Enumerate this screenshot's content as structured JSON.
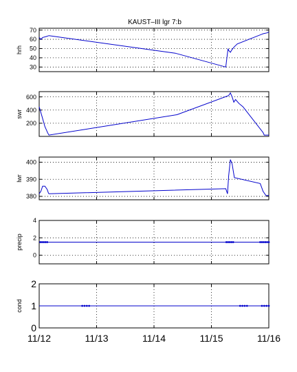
{
  "title": "KAUST–III  lgr 7:b",
  "line_color": "#0000cc",
  "x_tick_labels": [
    "11/12",
    "11/13",
    "11/14",
    "11/15",
    "11/16"
  ],
  "chart_data": [
    {
      "type": "line",
      "ylabel": "hrh",
      "xlim": [
        0,
        4
      ],
      "ylim": [
        25,
        72
      ],
      "y_ticks": [
        30,
        40,
        50,
        60,
        70
      ],
      "grid": true,
      "series": [
        {
          "x": [
            0,
            0.03,
            0.06,
            0.12,
            0.17,
            2.37,
            3.25,
            3.29,
            3.3,
            3.33,
            3.36,
            3.4,
            3.45,
            3.9,
            3.97,
            4.0
          ],
          "y": [
            62,
            60,
            62,
            63,
            64,
            45,
            30,
            50,
            48,
            46,
            49,
            52,
            55,
            66,
            67,
            68
          ]
        }
      ]
    },
    {
      "type": "line",
      "ylabel": "swr",
      "xlim": [
        0,
        4
      ],
      "ylim": [
        0,
        680
      ],
      "y_ticks": [
        200,
        400,
        600
      ],
      "grid": true,
      "series": [
        {
          "x": [
            0,
            0.05,
            0.1,
            0.15,
            0.17,
            2.4,
            3.3,
            3.33,
            3.36,
            3.39,
            3.42,
            3.48,
            3.55,
            3.9,
            3.92,
            3.96,
            4.0
          ],
          "y": [
            450,
            300,
            150,
            50,
            20,
            330,
            620,
            660,
            600,
            520,
            560,
            500,
            450,
            60,
            20,
            20,
            20
          ]
        }
      ]
    },
    {
      "type": "line",
      "ylabel": "lwr",
      "xlim": [
        0,
        4
      ],
      "ylim": [
        378,
        403
      ],
      "y_ticks": [
        380,
        390,
        400
      ],
      "grid": true,
      "series": [
        {
          "x": [
            0,
            0.03,
            0.06,
            0.1,
            0.14,
            0.16,
            0.17,
            3.25,
            3.28,
            3.3,
            3.33,
            3.36,
            3.4,
            3.85,
            3.9,
            3.95,
            4.0
          ],
          "y": [
            381.5,
            383,
            386,
            386,
            384,
            382,
            381.5,
            384.5,
            381.5,
            392,
            401.5,
            399,
            391,
            387.5,
            383,
            380.5,
            380.5
          ]
        }
      ]
    },
    {
      "type": "line",
      "ylabel": "precip",
      "xlim": [
        0,
        4
      ],
      "ylim": [
        -1,
        4
      ],
      "y_ticks": [
        0,
        2,
        4
      ],
      "grid": true,
      "series": [
        {
          "x": [
            0,
            4
          ],
          "y": [
            1.5,
            1.5
          ]
        }
      ],
      "markers": [
        {
          "x": [
            0.02,
            0.05,
            0.08,
            0.11,
            0.14,
            3.26,
            3.29,
            3.32,
            3.35,
            3.38,
            3.85,
            3.88,
            3.91,
            3.94,
            3.97,
            4.0
          ],
          "y": 1.5
        }
      ]
    },
    {
      "type": "line",
      "ylabel": "cond",
      "xlim": [
        0,
        4
      ],
      "ylim": [
        0,
        2
      ],
      "y_ticks": [
        0,
        1,
        2
      ],
      "grid": true,
      "series": [
        {
          "x": [
            0,
            4
          ],
          "y": [
            1,
            1
          ]
        }
      ],
      "markers": [
        {
          "x": [
            0.75,
            0.79,
            0.83,
            0.87,
            3.5,
            3.54,
            3.58,
            3.62,
            3.88,
            3.92,
            3.96,
            4.0
          ],
          "y": 1
        }
      ]
    }
  ]
}
